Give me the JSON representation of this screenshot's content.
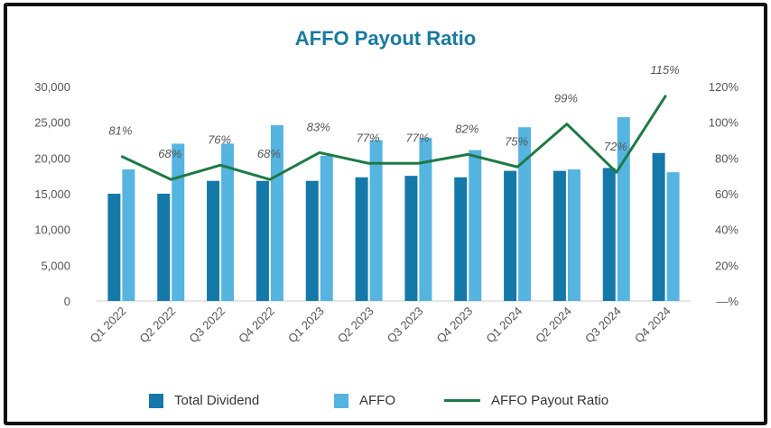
{
  "colors": {
    "dividend": "#1478a8",
    "affo": "#55b4e0",
    "ratio": "#1e7a45",
    "title": "#1a7a9e"
  },
  "chart_data": {
    "type": "bar",
    "title": "AFFO Payout Ratio",
    "categories": [
      "Q1 2022",
      "Q2 2022",
      "Q3 2022",
      "Q4 2022",
      "Q1 2023",
      "Q2 2023",
      "Q3 2023",
      "Q4 2023",
      "Q1 2024",
      "Q2 2024",
      "Q3 2024",
      "Q4 2024"
    ],
    "series": [
      {
        "name": "Total Dividend",
        "kind": "bar",
        "axis": "left",
        "values": [
          15000,
          15000,
          16800,
          16800,
          16800,
          17300,
          17500,
          17300,
          18200,
          18200,
          18600,
          20700
        ]
      },
      {
        "name": "AFFO",
        "kind": "bar",
        "axis": "left",
        "values": [
          18400,
          22000,
          22000,
          24600,
          20300,
          22500,
          22800,
          21100,
          24300,
          18400,
          25700,
          18000
        ]
      },
      {
        "name": "AFFO Payout Ratio",
        "kind": "line",
        "axis": "right",
        "values": [
          81,
          68,
          76,
          68,
          83,
          77,
          77,
          82,
          75,
          99,
          72,
          115
        ],
        "labels": [
          "81%",
          "68%",
          "76%",
          "68%",
          "83%",
          "77%",
          "77%",
          "82%",
          "75%",
          "99%",
          "72%",
          "115%"
        ]
      }
    ],
    "y_left": {
      "ticks": [
        "0",
        "5,000",
        "10,000",
        "15,000",
        "20,000",
        "25,000",
        "30,000"
      ],
      "range": [
        0,
        30000
      ]
    },
    "y_right": {
      "ticks": [
        "—%",
        "20%",
        "40%",
        "60%",
        "80%",
        "100%",
        "120%"
      ],
      "range": [
        0,
        120
      ]
    },
    "legend": [
      "Total Dividend",
      "AFFO",
      "AFFO Payout Ratio"
    ],
    "legend_position": "bottom",
    "grid": false
  }
}
